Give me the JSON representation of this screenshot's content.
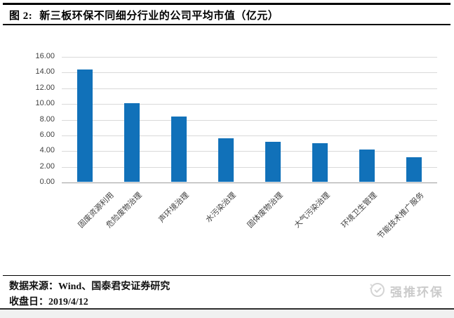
{
  "figure": {
    "title_prefix": "图 2:",
    "title_text": "新三板环保不同细分行业的公司平均市值（亿元）"
  },
  "chart_data": {
    "type": "bar",
    "title": "新三板环保不同细分行业的公司平均市值（亿元）",
    "categories": [
      "固废资源利用",
      "危险废物治理",
      "声环境治理",
      "水污染治理",
      "固体废物治理",
      "大气污染治理",
      "环境卫生管理",
      "节能技术推广服务"
    ],
    "values": [
      14.3,
      10.0,
      8.3,
      5.5,
      5.1,
      4.9,
      4.1,
      3.1
    ],
    "xlabel": "",
    "ylabel": "",
    "ylim": [
      0,
      16
    ],
    "ytick_step": 2,
    "ytick_decimals": 2,
    "grid": "horizontal",
    "legend_position": "none",
    "bar_color": "#1171b9",
    "gridline_color": "#d9d9d9",
    "axis_line_color": "#9c9c9c",
    "tick_label_color": "#3f3f3f"
  },
  "footer": {
    "source": "数据来源：Wind、国泰君安证券研究",
    "close_date": "收盘日：2019/4/12"
  },
  "watermark": {
    "label": "强推环保",
    "icon": "brand-logo-icon"
  }
}
